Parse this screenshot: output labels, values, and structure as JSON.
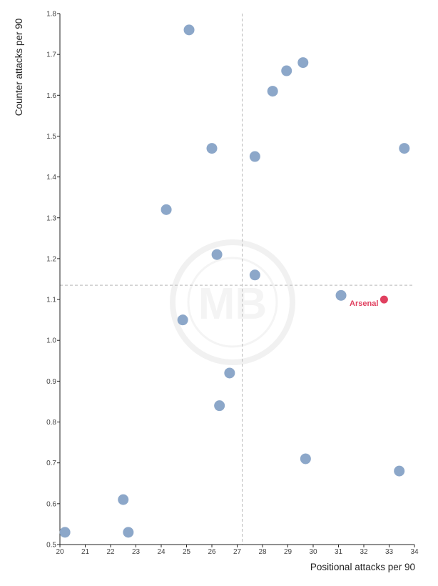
{
  "chart_data": {
    "type": "scatter",
    "xlabel": "Positional attacks per 90",
    "ylabel": "Counter attacks per 90",
    "xlim": [
      20,
      34
    ],
    "ylim": [
      0.5,
      1.8
    ],
    "x_ticks": [
      20,
      21,
      22,
      23,
      24,
      25,
      26,
      27,
      28,
      29,
      30,
      31,
      32,
      33,
      34
    ],
    "y_ticks": [
      "0.5",
      "0.6",
      "0.7",
      "0.8",
      "0.9",
      "1.0",
      "1.1",
      "1.2",
      "1.3",
      "1.4",
      "1.5",
      "1.6",
      "1.7",
      "1.8"
    ],
    "grid": false,
    "reference_lines": {
      "x": 27.2,
      "y": 1.135
    },
    "point_color": "#8aa5c8",
    "highlight_color": "#e0405f",
    "points": [
      {
        "x": 20.2,
        "y": 0.53
      },
      {
        "x": 22.5,
        "y": 0.61
      },
      {
        "x": 22.7,
        "y": 0.53
      },
      {
        "x": 24.2,
        "y": 1.32
      },
      {
        "x": 24.85,
        "y": 1.05
      },
      {
        "x": 25.1,
        "y": 1.76
      },
      {
        "x": 26.0,
        "y": 1.47
      },
      {
        "x": 26.2,
        "y": 1.21
      },
      {
        "x": 26.3,
        "y": 0.84
      },
      {
        "x": 26.7,
        "y": 0.92
      },
      {
        "x": 27.7,
        "y": 1.45
      },
      {
        "x": 27.7,
        "y": 1.16
      },
      {
        "x": 28.4,
        "y": 1.61
      },
      {
        "x": 28.95,
        "y": 1.66
      },
      {
        "x": 29.6,
        "y": 1.68
      },
      {
        "x": 29.7,
        "y": 0.71
      },
      {
        "x": 31.1,
        "y": 1.11
      },
      {
        "x": 33.4,
        "y": 0.68
      },
      {
        "x": 33.6,
        "y": 1.47
      }
    ],
    "highlight": {
      "label": "Arsenal",
      "x": 32.8,
      "y": 1.1
    }
  },
  "watermark": "MB"
}
